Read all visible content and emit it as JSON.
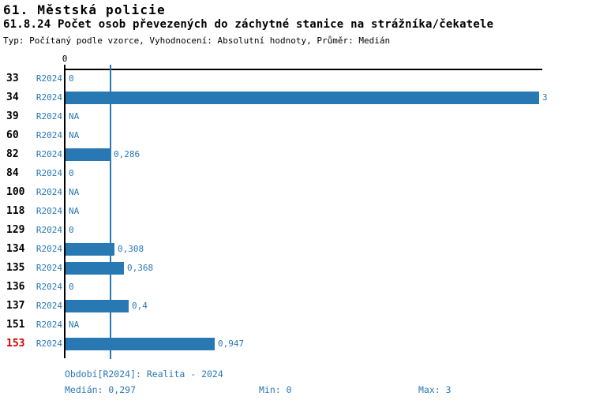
{
  "title": "61. Městská policie",
  "subtitle": "61.8.24 Počet osob převezených do záchytné stanice na strážníka/čekatele",
  "meta": "Typ: Počítaný podle vzorce, Vyhodnocení: Absolutní hodnoty, Průměr: Medián",
  "colors": {
    "bar": "#2878b4",
    "text_accent": "#2878b4",
    "axis": "#000000",
    "highlight_code": "#cc0000"
  },
  "chart_data": {
    "type": "bar",
    "orientation": "horizontal",
    "title": "61.8.24 Počet osob převezených do záchytné stanice na strážníka/čekatele",
    "xlim": [
      0,
      3
    ],
    "x_tick_labels": [
      "0"
    ],
    "grid": false,
    "median": 0.297,
    "median_line": true,
    "categories": [
      "33",
      "34",
      "39",
      "60",
      "82",
      "84",
      "100",
      "118",
      "129",
      "134",
      "135",
      "136",
      "137",
      "151",
      "153"
    ],
    "series_name": "R2024",
    "values": [
      0,
      3,
      null,
      null,
      0.286,
      0,
      null,
      null,
      0,
      0.308,
      0.368,
      0,
      0.4,
      null,
      0.947
    ],
    "rows": [
      {
        "code": "33",
        "period": "R2024",
        "value": 0,
        "label": "0",
        "highlight": false
      },
      {
        "code": "34",
        "period": "R2024",
        "value": 3,
        "label": "3",
        "highlight": false
      },
      {
        "code": "39",
        "period": "R2024",
        "value": null,
        "label": "NA",
        "highlight": false
      },
      {
        "code": "60",
        "period": "R2024",
        "value": null,
        "label": "NA",
        "highlight": false
      },
      {
        "code": "82",
        "period": "R2024",
        "value": 0.286,
        "label": "0,286",
        "highlight": false
      },
      {
        "code": "84",
        "period": "R2024",
        "value": 0,
        "label": "0",
        "highlight": false
      },
      {
        "code": "100",
        "period": "R2024",
        "value": null,
        "label": "NA",
        "highlight": false
      },
      {
        "code": "118",
        "period": "R2024",
        "value": null,
        "label": "NA",
        "highlight": false
      },
      {
        "code": "129",
        "period": "R2024",
        "value": 0,
        "label": "0",
        "highlight": false
      },
      {
        "code": "134",
        "period": "R2024",
        "value": 0.308,
        "label": "0,308",
        "highlight": false
      },
      {
        "code": "135",
        "period": "R2024",
        "value": 0.368,
        "label": "0,368",
        "highlight": false
      },
      {
        "code": "136",
        "period": "R2024",
        "value": 0,
        "label": "0",
        "highlight": false
      },
      {
        "code": "137",
        "period": "R2024",
        "value": 0.4,
        "label": "0,4",
        "highlight": false
      },
      {
        "code": "151",
        "period": "R2024",
        "value": null,
        "label": "NA",
        "highlight": false
      },
      {
        "code": "153",
        "period": "R2024",
        "value": 0.947,
        "label": "0,947",
        "highlight": true
      }
    ]
  },
  "footer": {
    "period_legend": "Období[R2024]: Realita - 2024",
    "median_label": "Medián: 0,297",
    "min_label": "Min: 0",
    "max_label": "Max: 3"
  }
}
